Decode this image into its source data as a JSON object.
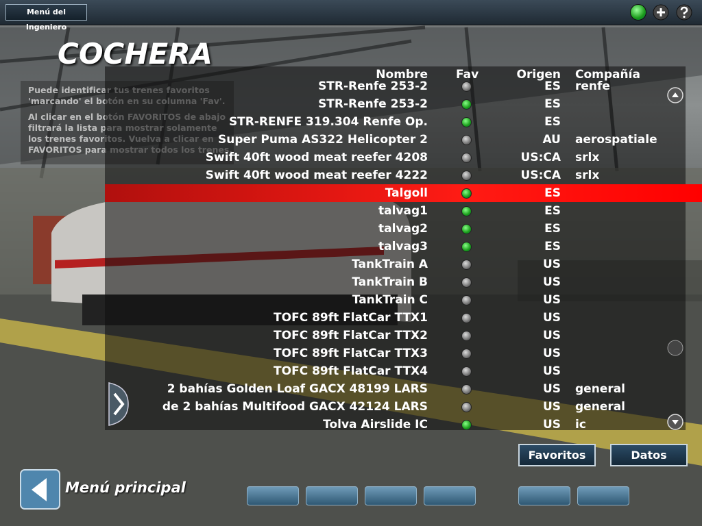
{
  "header": {
    "menu_button": "Menú del Ingeniero"
  },
  "title": "COCHERA",
  "help": [
    "Puede identificar tus trenes favoritos 'marcando' el botón en su columna 'Fav'.",
    "Al clicar en el botón FAVORITOS de abajo filtrará la lista para mostrar solamente los trenes favoritos. Vuelva a clicar en FAVORITOS para mostrar todos los trenes."
  ],
  "table": {
    "columns": [
      "Nombre",
      "Fav",
      "Origen",
      "Compañía"
    ],
    "selected": 6,
    "rows": [
      {
        "name": "STR-Renfe 253-2",
        "fav": false,
        "origin": "ES",
        "company": "renfe"
      },
      {
        "name": "STR-Renfe 253-2",
        "fav": true,
        "origin": "ES"
      },
      {
        "name": "STR-RENFE 319.304 Renfe Op.",
        "fav": true,
        "origin": "ES"
      },
      {
        "name": "Super Puma AS322 Helicopter 2",
        "fav": false,
        "origin": "AU",
        "company": "aerospatiale"
      },
      {
        "name": "Swift 40ft wood meat reefer 4208",
        "fav": false,
        "origin": "US:CA",
        "company": "srlx"
      },
      {
        "name": "Swift 40ft wood meat reefer 4222",
        "fav": false,
        "origin": "US:CA",
        "company": "srlx"
      },
      {
        "name": "Talgoll",
        "fav": true,
        "origin": "ES"
      },
      {
        "name": "talvag1",
        "fav": true,
        "origin": "ES"
      },
      {
        "name": "talvag2",
        "fav": true,
        "origin": "ES"
      },
      {
        "name": "talvag3",
        "fav": true,
        "origin": "ES"
      },
      {
        "name": "TankTrain A",
        "fav": false,
        "origin": "US"
      },
      {
        "name": "TankTrain B",
        "fav": false,
        "origin": "US"
      },
      {
        "name": "TankTrain C",
        "fav": false,
        "origin": "US"
      },
      {
        "name": "TOFC 89ft FlatCar TTX1",
        "fav": false,
        "origin": "US"
      },
      {
        "name": "TOFC 89ft FlatCar TTX2",
        "fav": false,
        "origin": "US"
      },
      {
        "name": "TOFC 89ft FlatCar TTX3",
        "fav": false,
        "origin": "US"
      },
      {
        "name": "TOFC 89ft FlatCar TTX4",
        "fav": false,
        "origin": "US"
      },
      {
        "name": "2 bahías Golden Loaf GACX 48199 LARS",
        "fav": false,
        "origin": "US",
        "company": "general"
      },
      {
        "name": "de 2 bahías Multifood GACX 42124 LARS",
        "fav": false,
        "origin": "US",
        "company": "general"
      },
      {
        "name": "Tolva Airslide IC",
        "fav": true,
        "origin": "US",
        "company": "ic"
      }
    ]
  },
  "buttons": [
    "Favoritos",
    "Datos"
  ],
  "back": "Menú principal"
}
